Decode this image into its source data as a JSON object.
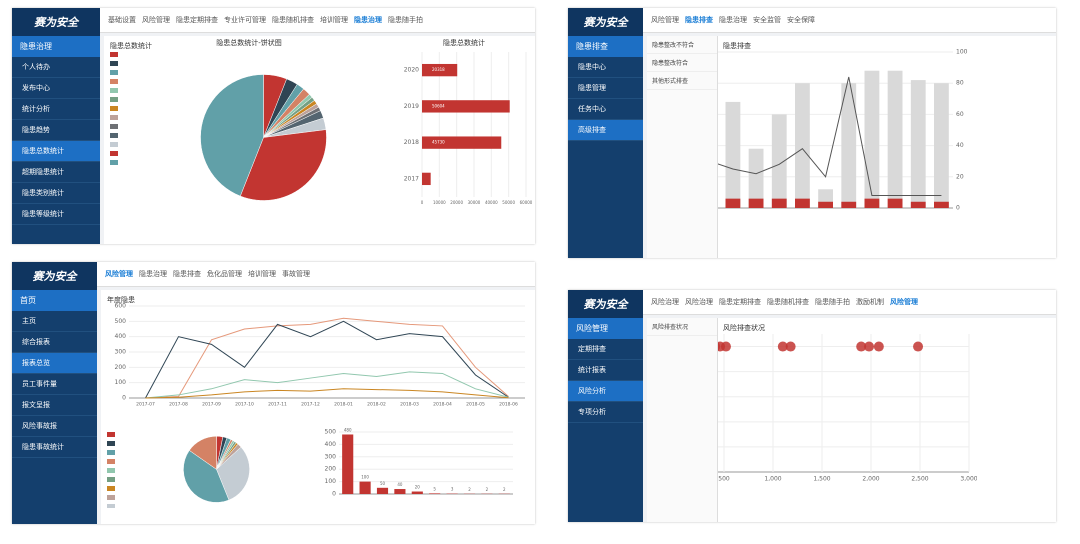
{
  "panels": [
    {
      "logo": "赛为安全",
      "nav": [
        "基础设置",
        "风险管理",
        "隐患定期排查",
        "专业许可管理",
        "隐患随机排查",
        "培训管理",
        "隐患治理",
        "隐患随手拍"
      ],
      "active_nav": 6,
      "sidebar_header": "隐患治理",
      "sidebar": [
        "个人待办",
        "发布中心",
        "统计分析",
        "隐患趋势",
        "隐患总数统计",
        "超期隐患统计",
        "隐患类别统计",
        "隐患等级统计"
      ],
      "active_sidebar": 4,
      "content_title": "隐患总数统计",
      "charts": [
        {
          "type": "pie",
          "title": "隐患总数统计-饼状图",
          "values": [
            6,
            3,
            2,
            2,
            1,
            1,
            1,
            1,
            1,
            2,
            3,
            33,
            44
          ],
          "colors": [
            "#c23531",
            "#2f4554",
            "#61a0a8",
            "#d48265",
            "#91c7ae",
            "#749f83",
            "#ca8622",
            "#bda29a",
            "#6e7074",
            "#546570",
            "#c4ccd3",
            "#c23531",
            "#61a0a8"
          ]
        },
        {
          "type": "hbar",
          "title": "隐患总数统计",
          "categories": [
            "2020",
            "2019",
            "2018",
            "2017"
          ],
          "values": [
            20318,
            50604,
            45730,
            5004
          ],
          "color": "#c23531",
          "xlim": [
            0,
            60000
          ],
          "xticks": [
            0,
            10000,
            20000,
            30000,
            40000,
            50000,
            60000
          ]
        }
      ]
    },
    {
      "logo": "赛为安全",
      "nav": [
        "风险管理",
        "隐患排查",
        "隐患治理",
        "安全监管",
        "安全保障"
      ],
      "active_nav": 1,
      "sidebar_header": "隐患排查",
      "sidebar": [
        "隐患中心",
        "隐患管理",
        "任务中心",
        "高级排查"
      ],
      "active_sidebar": 3,
      "content_title": "隐患排查",
      "sub_menu": [
        "隐患整改不符合",
        "隐患整改符合",
        "其他形式排查"
      ],
      "charts": [
        {
          "type": "combo",
          "ylim": [
            0,
            50
          ],
          "yticks": [
            0,
            10,
            20,
            30,
            40,
            50
          ],
          "y2lim": [
            0,
            100
          ],
          "y2ticks": [
            0,
            20,
            40,
            60,
            80,
            100
          ],
          "categories": [
            null,
            null,
            null,
            null,
            null,
            null,
            null,
            null,
            null,
            null,
            null,
            null
          ],
          "series": [
            {
              "color": "#d9d9d9",
              "values": [
                30,
                41,
                34,
                19,
                30,
                40,
                6,
                40,
                44,
                44,
                41,
                40
              ]
            },
            {
              "color": "#c23531",
              "values": [
                5,
                4,
                3,
                3,
                3,
                3,
                2,
                2,
                3,
                3,
                2,
                2
              ]
            },
            {
              "color": "#555555",
              "axis": "y2",
              "values": [
                35,
                30,
                25,
                22,
                28,
                38,
                20,
                84,
                8,
                8,
                8,
                8
              ]
            }
          ]
        }
      ]
    },
    {
      "logo": "赛为安全",
      "nav": [
        "风险管理",
        "隐患治理",
        "隐患排查",
        "危化品管理",
        "培训管理",
        "事故管理"
      ],
      "active_nav": 0,
      "sidebar_header": "首页",
      "sidebar": [
        "主页",
        "综合报表",
        "报表总览",
        "员工事件量",
        "报文呈报",
        "风险事故报",
        "隐患事故统计"
      ],
      "active_sidebar": 2,
      "content_title": "年度隐患",
      "charts": [
        {
          "type": "line",
          "x": [
            "2017-07",
            "2017-08",
            "2017-09",
            "2017-10",
            "2017-11",
            "2017-12",
            "2018-01",
            "2018-02",
            "2018-03",
            "2018-04",
            "2018-05",
            "2018-06"
          ],
          "ylim": [
            0,
            600
          ],
          "yticks": [
            0,
            100,
            200,
            300,
            400,
            500,
            600
          ],
          "series": [
            {
              "color": "#e5987a",
              "values": [
                0,
                10,
                380,
                450,
                470,
                480,
                520,
                500,
                480,
                470,
                200,
                10
              ]
            },
            {
              "color": "#2f4554",
              "values": [
                0,
                400,
                350,
                200,
                480,
                400,
                500,
                380,
                420,
                400,
                150,
                5
              ]
            },
            {
              "color": "#91c7ae",
              "values": [
                0,
                20,
                60,
                120,
                100,
                130,
                160,
                140,
                170,
                160,
                60,
                5
              ]
            },
            {
              "color": "#ca8622",
              "values": [
                0,
                5,
                20,
                40,
                50,
                45,
                60,
                55,
                50,
                40,
                20,
                2
              ]
            }
          ]
        },
        {
          "type": "pie",
          "values": [
            3,
            2,
            2,
            1,
            1,
            1,
            1,
            2,
            30,
            40,
            15
          ],
          "colors": [
            "#c23531",
            "#2f4554",
            "#61a0a8",
            "#d48265",
            "#91c7ae",
            "#749f83",
            "#ca8622",
            "#bda29a",
            "#c4ccd3",
            "#61a0a8",
            "#d48265"
          ]
        },
        {
          "type": "bar",
          "categories": [
            null,
            null,
            null,
            null,
            null,
            null,
            null,
            null,
            null,
            null
          ],
          "values": [
            480,
            100,
            50,
            40,
            20,
            5,
            3,
            2,
            2,
            2
          ],
          "color": "#c23531",
          "ylim": [
            0,
            500
          ],
          "yticks": [
            0,
            100,
            200,
            300,
            400,
            500
          ]
        }
      ]
    },
    {
      "logo": "赛为安全",
      "nav": [
        "风险治理",
        "风险治理",
        "隐患定期排查",
        "隐患随机排查",
        "隐患随手拍",
        "激励机制",
        "风险管理"
      ],
      "active_nav": 6,
      "sidebar_header": "风险管理",
      "sidebar": [
        "定期排查",
        "统计报表",
        "风险分析",
        "专项分析"
      ],
      "active_sidebar": 2,
      "content_title": "风险排查状况",
      "sub_menu": [
        "风险排查状况"
      ],
      "charts": [
        {
          "type": "scatter",
          "color": "#c23531",
          "xlim": [
            0,
            3000
          ],
          "xticks": [
            0,
            {
              "value": 500,
              "label": "500"
            },
            {
              "value": 1000,
              "label": "1,000"
            },
            {
              "value": 1500,
              "label": "1,500"
            },
            {
              "value": 2000,
              "label": "2,000"
            },
            {
              "value": 2500,
              "label": "2,500"
            },
            {
              "value": 3000,
              "label": "3,000"
            }
          ],
          "ylim": [
            0,
            110
          ],
          "yticks": [
            {
              "value": 0,
              "label": "0%"
            },
            {
              "value": 20,
              "label": "20%"
            },
            {
              "value": 40,
              "label": "40%"
            },
            {
              "value": 60,
              "label": "60%"
            },
            {
              "value": 80,
              "label": "80%"
            },
            {
              "value": 100,
              "label": "100%"
            }
          ],
          "x": [
            10,
            60,
            110,
            160,
            210,
            260,
            310,
            360,
            410,
            460,
            520,
            1100,
            1180,
            1900,
            1980,
            2080,
            2480
          ],
          "y": [
            100,
            100,
            100,
            100,
            100,
            100,
            100,
            100,
            100,
            100,
            100,
            100,
            100,
            100,
            100,
            100,
            100
          ]
        }
      ]
    }
  ]
}
